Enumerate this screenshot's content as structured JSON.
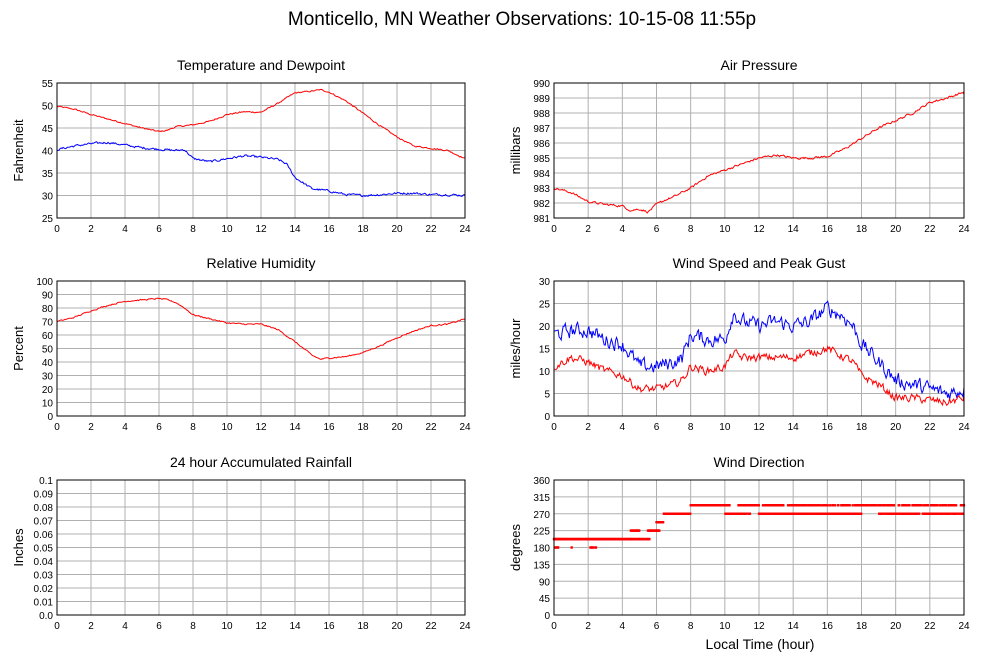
{
  "page": {
    "title": "Monticello, MN Weather Observations: 10-15-08 11:55p",
    "x_axis_label": "Local Time (hour)"
  },
  "colors": {
    "red": "#ff0000",
    "blue": "#0000ff",
    "grid": "#b0b0b0",
    "frame": "#000000"
  },
  "chart_data": [
    {
      "type": "line",
      "title": "Temperature and Dewpoint",
      "ylabel": "Fahrenheit",
      "xlim": [
        0,
        24
      ],
      "ylim": [
        25,
        55
      ],
      "xticks": [
        0,
        2,
        4,
        6,
        8,
        10,
        12,
        14,
        16,
        18,
        20,
        22,
        24
      ],
      "yticks": [
        25,
        30,
        35,
        40,
        45,
        50,
        55
      ],
      "grid": true,
      "series": [
        {
          "color": "#ff0000",
          "noise": 0.25,
          "x": [
            0,
            1,
            2,
            3,
            4,
            5,
            6,
            6.5,
            7,
            8,
            9,
            10,
            11,
            12,
            13,
            14,
            15,
            15.5,
            16,
            17,
            18,
            19,
            20,
            21,
            22,
            23,
            24
          ],
          "y": [
            49.8,
            49.2,
            48.0,
            47.0,
            46.0,
            45.0,
            44.2,
            44.5,
            45.3,
            45.7,
            46.5,
            48.0,
            48.6,
            48.5,
            50.5,
            52.8,
            53.2,
            53.5,
            53.0,
            51.0,
            48.3,
            45.5,
            43.0,
            41.0,
            40.5,
            40.0,
            38.2
          ]
        },
        {
          "color": "#0000ff",
          "noise": 0.4,
          "x": [
            0,
            1,
            2,
            3,
            4,
            5,
            6,
            7,
            7.5,
            8,
            9,
            10,
            11,
            12,
            13,
            13.5,
            14,
            15,
            16,
            17,
            18,
            19,
            20,
            21,
            22,
            23,
            24
          ],
          "y": [
            40.2,
            41.0,
            41.5,
            41.8,
            41.2,
            40.6,
            40.3,
            40.0,
            40.2,
            38.2,
            37.5,
            38.2,
            38.8,
            38.5,
            38.0,
            37.0,
            34.0,
            31.5,
            31.0,
            30.2,
            30.0,
            30.2,
            30.5,
            30.5,
            30.2,
            30.2,
            30.0
          ]
        }
      ]
    },
    {
      "type": "line",
      "title": "Air Pressure",
      "ylabel": "millibars",
      "xlim": [
        0,
        24
      ],
      "ylim": [
        981,
        990
      ],
      "xticks": [
        0,
        2,
        4,
        6,
        8,
        10,
        12,
        14,
        16,
        18,
        20,
        22,
        24
      ],
      "yticks": [
        981,
        982,
        983,
        984,
        985,
        986,
        987,
        988,
        989,
        990
      ],
      "grid": true,
      "series": [
        {
          "color": "#ff0000",
          "noise": 0.12,
          "x": [
            0,
            1,
            2,
            3,
            4,
            4.5,
            5,
            5.5,
            6,
            6.5,
            7,
            8,
            9,
            10,
            11,
            12,
            13,
            14,
            15,
            16,
            17,
            18,
            19,
            20,
            21,
            22,
            23,
            24
          ],
          "y": [
            983.0,
            982.7,
            982.1,
            981.9,
            981.8,
            981.5,
            981.6,
            981.4,
            981.9,
            982.2,
            982.4,
            983.0,
            983.8,
            984.2,
            984.6,
            985.0,
            985.2,
            985.0,
            985.0,
            985.1,
            985.6,
            986.3,
            987.0,
            987.5,
            988.0,
            988.7,
            989.0,
            989.4
          ]
        }
      ]
    },
    {
      "type": "line",
      "title": "Relative Humidity",
      "ylabel": "Percent",
      "xlim": [
        0,
        24
      ],
      "ylim": [
        0,
        100
      ],
      "xticks": [
        0,
        2,
        4,
        6,
        8,
        10,
        12,
        14,
        16,
        18,
        20,
        22,
        24
      ],
      "yticks": [
        0,
        10,
        20,
        30,
        40,
        50,
        60,
        70,
        80,
        90,
        100
      ],
      "grid": true,
      "series": [
        {
          "color": "#ff0000",
          "noise": 0.8,
          "x": [
            0,
            1,
            2,
            3,
            4,
            5,
            6,
            6.5,
            7,
            7.5,
            8,
            9,
            10,
            11,
            12,
            13,
            14,
            15,
            15.5,
            16,
            17,
            18,
            19,
            20,
            21,
            22,
            23,
            24
          ],
          "y": [
            70,
            73,
            78,
            82,
            85,
            86,
            87,
            86,
            84,
            80,
            75,
            72,
            69,
            68,
            68,
            64,
            55,
            45,
            42,
            43,
            44,
            47,
            52,
            58,
            63,
            67,
            68,
            72
          ]
        }
      ]
    },
    {
      "type": "line",
      "title": "Wind Speed and Peak Gust",
      "ylabel": "miles/hour",
      "xlim": [
        0,
        24
      ],
      "ylim": [
        0,
        30
      ],
      "xticks": [
        0,
        2,
        4,
        6,
        8,
        10,
        12,
        14,
        16,
        18,
        20,
        22,
        24
      ],
      "yticks": [
        0,
        5,
        10,
        15,
        20,
        25,
        30
      ],
      "grid": true,
      "series": [
        {
          "color": "#0000ff",
          "noise": 2.6,
          "x": [
            0,
            1,
            2,
            3,
            4,
            5,
            6,
            7,
            7.5,
            8,
            9,
            10,
            10.5,
            11,
            12,
            13,
            14,
            15,
            16,
            17,
            17.5,
            18,
            19,
            20,
            21,
            22,
            23,
            24
          ],
          "y": [
            18,
            19,
            19,
            17,
            16,
            11,
            11,
            12,
            13,
            18,
            17,
            17,
            23,
            21,
            20,
            21,
            20,
            21,
            24,
            22,
            20,
            16,
            12,
            8,
            7,
            6,
            5,
            6
          ]
        },
        {
          "color": "#ff0000",
          "noise": 1.4,
          "x": [
            0,
            1,
            2,
            3,
            4,
            5,
            6,
            7,
            7.5,
            8,
            9,
            10,
            10.5,
            11,
            12,
            13,
            14,
            15,
            16,
            17,
            17.5,
            18,
            19,
            20,
            21,
            22,
            23,
            24
          ],
          "y": [
            11,
            13,
            12,
            10,
            9,
            6,
            6,
            7,
            8,
            11,
            10,
            11,
            14,
            13,
            13,
            13,
            13,
            14,
            15,
            13,
            12,
            9,
            7,
            4,
            4,
            3.5,
            3,
            4
          ]
        }
      ]
    },
    {
      "type": "line",
      "title": "24 hour Accumulated Rainfall",
      "ylabel": "Inches",
      "xlim": [
        0,
        24
      ],
      "ylim": [
        0,
        0.1
      ],
      "xticks": [
        0,
        2,
        4,
        6,
        8,
        10,
        12,
        14,
        16,
        18,
        20,
        22,
        24
      ],
      "yticks": [
        0.0,
        0.01,
        0.02,
        0.03,
        0.04,
        0.05,
        0.06,
        0.07,
        0.08,
        0.09,
        0.1
      ],
      "ytick_labels": [
        "0.0",
        "0.01",
        "0.02",
        "0.03",
        "0.04",
        "0.05",
        "0.06",
        "0.07",
        "0.08",
        "0.09",
        "0.1"
      ],
      "grid": true,
      "series": [
        {
          "color": "#ff0000",
          "noise": 0,
          "x": [
            0,
            24
          ],
          "y": [
            0,
            0
          ]
        }
      ]
    },
    {
      "type": "scatter",
      "title": "Wind Direction",
      "ylabel": "degrees",
      "xlim": [
        0,
        24
      ],
      "ylim": [
        0,
        360
      ],
      "xticks": [
        0,
        2,
        4,
        6,
        8,
        10,
        12,
        14,
        16,
        18,
        20,
        22,
        24
      ],
      "yticks": [
        0,
        45,
        90,
        135,
        180,
        225,
        270,
        315,
        360
      ],
      "grid": true,
      "series": [
        {
          "color": "#ff0000",
          "segments": [
            {
              "from": 0.0,
              "to": 4.5,
              "y": 202.5,
              "gaps": 0.05
            },
            {
              "from": 0.1,
              "to": 0.4,
              "y": 180,
              "gaps": 0.5
            },
            {
              "from": 1.0,
              "to": 1.1,
              "y": 180,
              "gaps": 0.5
            },
            {
              "from": 2.1,
              "to": 2.5,
              "y": 180,
              "gaps": 0.5
            },
            {
              "from": 4.5,
              "to": 5.6,
              "y": 202.5,
              "gaps": 0.2
            },
            {
              "from": 4.5,
              "to": 5.0,
              "y": 225,
              "gaps": 0.1
            },
            {
              "from": 5.5,
              "to": 6.2,
              "y": 225,
              "gaps": 0.1
            },
            {
              "from": 6.0,
              "to": 6.4,
              "y": 247.5,
              "gaps": 0.1
            },
            {
              "from": 6.4,
              "to": 8.0,
              "y": 270,
              "gaps": 0.05
            },
            {
              "from": 8.0,
              "to": 10.3,
              "y": 292.5,
              "gaps": 0.03
            },
            {
              "from": 10.0,
              "to": 11.5,
              "y": 270,
              "gaps": 0.5
            },
            {
              "from": 10.8,
              "to": 12.0,
              "y": 292.5,
              "gaps": 0.15
            },
            {
              "from": 12.0,
              "to": 16.5,
              "y": 270,
              "gaps": 0.25
            },
            {
              "from": 12.2,
              "to": 24.0,
              "y": 292.5,
              "gaps": 0.45
            },
            {
              "from": 15.5,
              "to": 18.0,
              "y": 270,
              "gaps": 0.08
            },
            {
              "from": 19.0,
              "to": 24.0,
              "y": 270,
              "gaps": 0.3
            }
          ]
        }
      ]
    }
  ]
}
